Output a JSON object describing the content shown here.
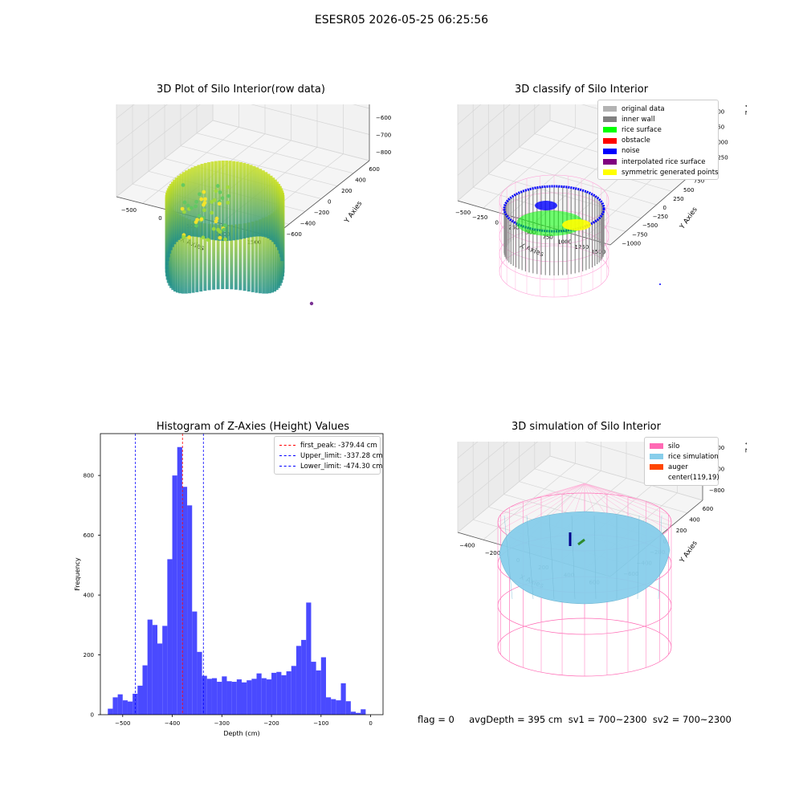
{
  "page_title": "ESESR05 2026-05-25 06:25:56",
  "footer_text": "flag = 0     avgDepth = 395 cm  sv1 = 700~2300  sv2 = 700~2300",
  "chart_data": [
    {
      "type": "scatter3d",
      "title": "3D Plot of Silo Interior(row data)",
      "xlabel": "X Axies",
      "ylabel": "Y Axies",
      "zlabel": "Z Axies (Depth)",
      "xticks": [
        "−500",
        "0",
        "500",
        "1000",
        "1500"
      ],
      "yticks": [
        "−600",
        "−400",
        "−200",
        "0",
        "200",
        "400",
        "600"
      ],
      "zticks": [
        "0",
        "−100",
        "−200",
        "−300",
        "−400",
        "−500",
        "−600",
        "−700",
        "−800"
      ],
      "colormap": "viridis"
    },
    {
      "type": "scatter3d",
      "title": "3D classify of Silo Interior",
      "xlabel": "X Axies",
      "ylabel": "Y Axies",
      "zlabel": "Z Axies (Depth)",
      "xticks": [
        "−500",
        "−250",
        "0",
        "250",
        "500",
        "750",
        "1000",
        "1250",
        "1500"
      ],
      "yticks": [
        "−1000",
        "−750",
        "−500",
        "−250",
        "0",
        "250",
        "500",
        "750",
        "1000"
      ],
      "zticks": [
        "1000",
        "750",
        "500",
        "250",
        "0",
        "−250",
        "−500",
        "−750",
        "−1000",
        "−1250"
      ],
      "legend": [
        {
          "label": "original data",
          "color": "#b3b3b3"
        },
        {
          "label": "inner wall",
          "color": "#808080"
        },
        {
          "label": "rice surface",
          "color": "#00ff00"
        },
        {
          "label": "obstacle",
          "color": "#ff0000"
        },
        {
          "label": "noise",
          "color": "#0000ff"
        },
        {
          "label": "interpolated rice surface",
          "color": "#800080"
        },
        {
          "label": "symmetric generated points",
          "color": "#ffff00"
        }
      ],
      "legend_position": "top-right"
    },
    {
      "type": "bar",
      "title": "Histogram of Z-Axies (Height) Values",
      "xlabel": "Depth (cm)",
      "ylabel": "Frequency",
      "bar_color": "#4a4aff",
      "bin_width": 10,
      "x": [
        -525,
        -515,
        -505,
        -495,
        -485,
        -475,
        -465,
        -455,
        -445,
        -435,
        -425,
        -415,
        -405,
        -395,
        -385,
        -375,
        -365,
        -355,
        -345,
        -335,
        -325,
        -315,
        -305,
        -295,
        -285,
        -275,
        -265,
        -255,
        -245,
        -235,
        -225,
        -215,
        -205,
        -195,
        -185,
        -175,
        -165,
        -155,
        -145,
        -135,
        -125,
        -115,
        -105,
        -95,
        -85,
        -75,
        -65,
        -55,
        -45,
        -35,
        -25,
        -15,
        -5
      ],
      "values": [
        20,
        58,
        68,
        48,
        44,
        70,
        97,
        165,
        318,
        300,
        238,
        297,
        520,
        800,
        895,
        762,
        700,
        345,
        210,
        130,
        120,
        122,
        110,
        128,
        112,
        110,
        118,
        108,
        115,
        120,
        138,
        122,
        118,
        140,
        143,
        132,
        145,
        163,
        230,
        250,
        375,
        177,
        148,
        192,
        58,
        52,
        48,
        105,
        45,
        10,
        6,
        18,
        0
      ],
      "xlim": [
        -545,
        25
      ],
      "ylim": [
        0,
        940
      ],
      "xticks": [
        -500,
        -400,
        -300,
        -200,
        -100,
        0
      ],
      "yticks": [
        0,
        200,
        400,
        600,
        800
      ],
      "xtick_labels": [
        "−500",
        "−400",
        "−300",
        "−200",
        "−100",
        "0"
      ],
      "ytick_labels": [
        "0",
        "200",
        "400",
        "600",
        "800"
      ],
      "vlines": [
        {
          "label": "first_peak: -379.44 cm",
          "x": -379.44,
          "color": "#ff0000"
        },
        {
          "label": "Upper_limit: -337.28 cm",
          "x": -337.28,
          "color": "#0000ff"
        },
        {
          "label": "Lower_limit: -474.30 cm",
          "x": -474.3,
          "color": "#0000ff"
        }
      ],
      "legend_position": "top-right"
    },
    {
      "type": "surface3d",
      "title": "3D simulation of Silo Interior",
      "xlabel": "X Axies",
      "ylabel": "Y Axies",
      "zlabel": "Z Axies (Depth)",
      "xticks": [
        "−400",
        "−200",
        "0",
        "200",
        "400",
        "600"
      ],
      "yticks": [
        "−600",
        "−400",
        "−200",
        "0",
        "200",
        "400",
        "600"
      ],
      "zticks": [
        "400",
        "200",
        "0",
        "−200",
        "−400",
        "−600",
        "−800"
      ],
      "legend": [
        {
          "label": "silo",
          "color": "#ff69b4"
        },
        {
          "label": "rice simulation",
          "color": "#87ceeb"
        },
        {
          "label": "auger",
          "color": "#ff4500"
        },
        {
          "label": "center(119,19)",
          "color": ""
        }
      ],
      "legend_position": "top-right"
    }
  ]
}
